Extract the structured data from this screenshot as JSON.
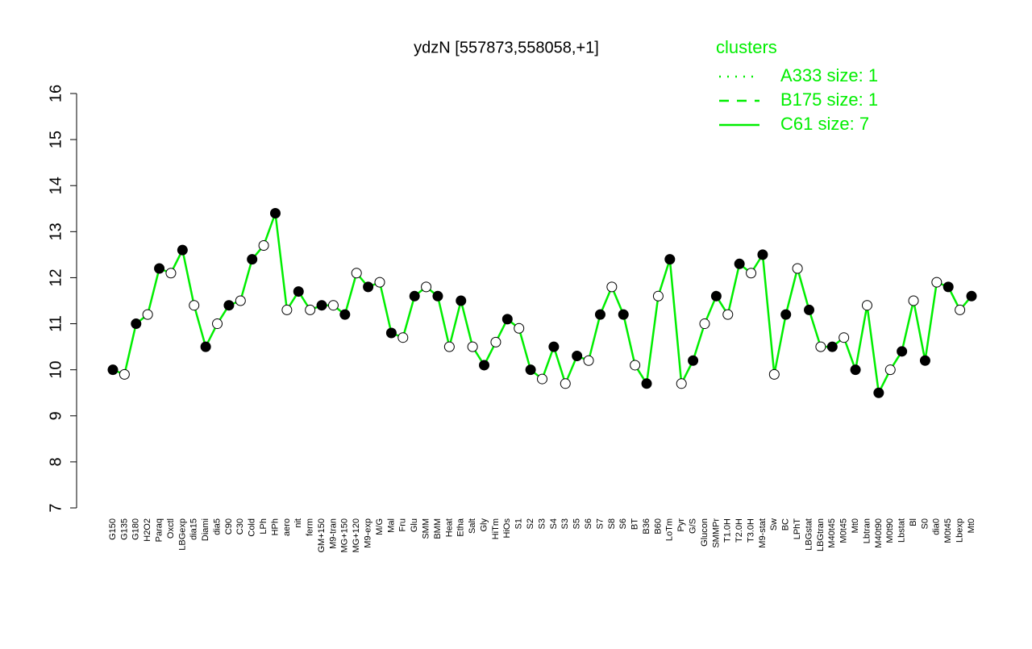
{
  "chart_data": {
    "type": "line",
    "title": "ydzN [557873,558058,+1]",
    "categories": [
      "G150",
      "G135",
      "G180",
      "H2O2",
      "Paraq",
      "Oxctl",
      "LBGexp",
      "dia15",
      "Diami",
      "dia5",
      "C90",
      "C30",
      "Cold",
      "LPh",
      "HPh",
      "aero",
      "nit",
      "ferm",
      "GM+150",
      "M9-tran",
      "MG+150",
      "MG+120",
      "M9-exp",
      "M/G",
      "Mal",
      "Fru",
      "Glu",
      "SMM",
      "BMM",
      "Heat",
      "Etha",
      "Salt",
      "Gly",
      "HiTm",
      "HiOs",
      "S1",
      "S2",
      "S3",
      "S4",
      "S3",
      "S5",
      "S6",
      "S7",
      "S8",
      "S6",
      "BT",
      "B36",
      "B60",
      "LoTm",
      "Pyr",
      "G/S",
      "Glucon",
      "SMMPr",
      "T1.0H",
      "T2.0H",
      "T3.0H",
      "M9-stat",
      "Sw",
      "BC",
      "LPhT",
      "LBGstat",
      "LBGtran",
      "M40t45",
      "M0t45",
      "Mt0",
      "Lbtran",
      "M40t90",
      "M0t90",
      "Lbstat",
      "Bl",
      "S0",
      "dia0",
      "M0t45",
      "Lbexp",
      "Mt0"
    ],
    "series": [
      {
        "name": "C61 size: 7",
        "color": "#00ee00",
        "values": [
          10.0,
          9.9,
          11.0,
          11.2,
          12.2,
          12.1,
          12.6,
          11.4,
          10.5,
          11.0,
          11.4,
          11.5,
          12.4,
          12.7,
          13.4,
          11.3,
          11.7,
          11.3,
          11.4,
          11.4,
          11.2,
          12.1,
          11.8,
          11.9,
          10.8,
          10.7,
          11.6,
          11.8,
          11.6,
          10.5,
          11.5,
          10.5,
          10.1,
          10.6,
          11.1,
          10.9,
          10.0,
          9.8,
          10.5,
          9.7,
          10.3,
          10.2,
          11.2,
          11.8,
          11.2,
          10.1,
          9.7,
          11.6,
          12.4,
          9.7,
          10.2,
          11.0,
          11.6,
          11.2,
          12.3,
          12.1,
          12.5,
          9.9,
          11.2,
          12.2,
          11.3,
          10.5,
          10.5,
          10.7,
          10.0,
          11.4,
          9.5,
          10.0,
          10.4,
          11.5,
          10.2,
          11.9,
          11.8,
          11.3,
          11.6
        ]
      }
    ],
    "legend_title": "clusters",
    "legend_entries": [
      "A333 size: 1",
      "B175 size: 1",
      "C61 size: 7"
    ],
    "ylim": [
      7,
      16
    ],
    "yticks": [
      7,
      8,
      9,
      10,
      11,
      12,
      13,
      14,
      15,
      16
    ]
  }
}
